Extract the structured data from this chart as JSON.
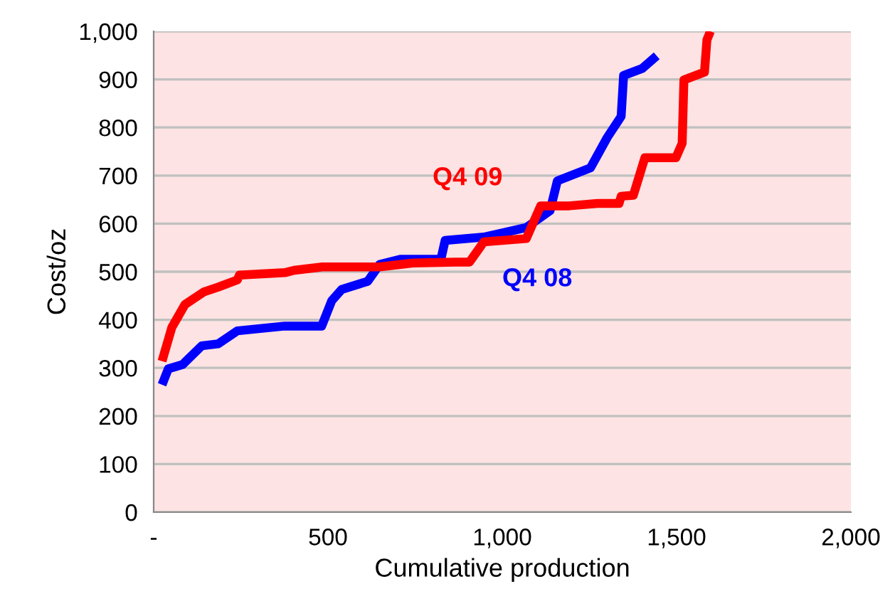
{
  "chart_data": {
    "type": "line",
    "xlabel": "Cumulative production",
    "ylabel": "Cost/oz",
    "xlim": [
      0,
      2000
    ],
    "ylim": [
      0,
      1000
    ],
    "xticks": [
      {
        "value": 0,
        "label": "-"
      },
      500,
      {
        "value": 1000,
        "label": "1,000"
      },
      {
        "value": 1500,
        "label": "1,500"
      },
      {
        "value": 2000,
        "label": "2,000"
      }
    ],
    "yticks": [
      0,
      100,
      200,
      300,
      400,
      500,
      600,
      700,
      800,
      900,
      {
        "value": 1000,
        "label": "1,000"
      }
    ],
    "grid": "y",
    "legend": false,
    "line_style": "solid",
    "marker": "none",
    "series": [
      {
        "name": "Q4 08",
        "color": "#0000ff",
        "x": [
          24,
          42,
          83,
          138,
          185,
          240,
          376,
          482,
          511,
          539,
          614,
          648,
          709,
          824,
          836,
          947,
          1069,
          1137,
          1158,
          1253,
          1301,
          1341,
          1348,
          1402,
          1443
        ],
        "values": [
          265,
          298,
          307,
          346,
          350,
          377,
          387,
          387,
          440,
          463,
          480,
          515,
          526,
          526,
          565,
          572,
          592,
          627,
          689,
          716,
          779,
          823,
          908,
          923,
          949
        ]
      },
      {
        "name": "Q4 09",
        "color": "#ff0000",
        "x": [
          24,
          52,
          90,
          144,
          185,
          240,
          246,
          376,
          403,
          484,
          648,
          743,
          865,
          906,
          947,
          1069,
          1110,
          1192,
          1273,
          1335,
          1341,
          1376,
          1409,
          1498,
          1516,
          1521,
          1580,
          1587,
          1597
        ],
        "values": [
          314,
          384,
          432,
          458,
          468,
          483,
          493,
          498,
          503,
          510,
          510,
          518,
          520,
          520,
          562,
          569,
          637,
          637,
          642,
          642,
          657,
          659,
          737,
          737,
          767,
          899,
          915,
          982,
          1000
        ]
      }
    ]
  }
}
